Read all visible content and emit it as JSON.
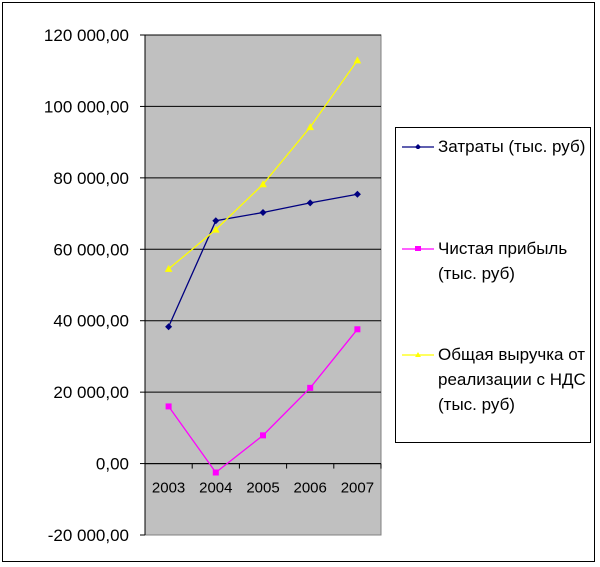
{
  "chart_data": {
    "type": "line",
    "categories": [
      "2003",
      "2004",
      "2005",
      "2006",
      "2007"
    ],
    "ylim": [
      -20000,
      120000
    ],
    "ytick_values": [
      -20000,
      0,
      20000,
      40000,
      60000,
      80000,
      100000,
      120000
    ],
    "ytick_labels": [
      "-20 000,00",
      "0,00",
      "20 000,00",
      "40 000,00",
      "60 000,00",
      "80 000,00",
      "100 000,00",
      "120 000,00"
    ],
    "grid": true,
    "legend_position": "right",
    "plot_background": "#c0c0c0",
    "series": [
      {
        "name": "Затраты (тыс. руб)",
        "color": "#000080",
        "marker": "diamond",
        "values": [
          38300,
          68000,
          70300,
          73000,
          75400
        ]
      },
      {
        "name": "Чистая прибыль (тыс. руб)",
        "color": "#ff00ff",
        "marker": "square",
        "values": [
          16000,
          -2500,
          7900,
          21200,
          37600
        ]
      },
      {
        "name": "Общая выручка от реализации с НДС (тыс. руб)",
        "color": "#ffff00",
        "marker": "triangle",
        "values": [
          54500,
          65500,
          78200,
          94200,
          112900
        ]
      }
    ]
  }
}
